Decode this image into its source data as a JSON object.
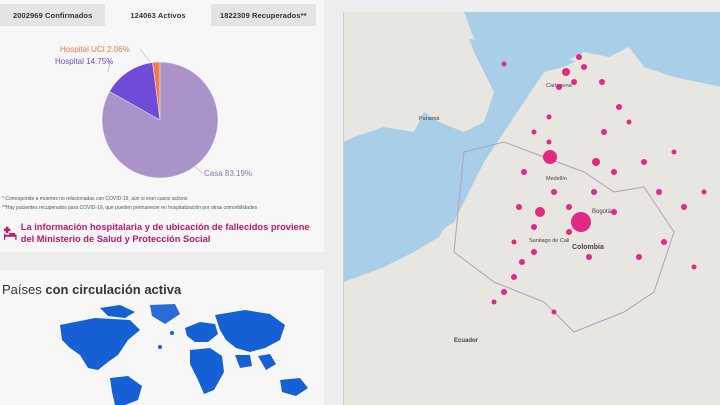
{
  "tabs": [
    {
      "label": "2002969 Confirmados"
    },
    {
      "label": "124063 Activos"
    },
    {
      "label": "1822309 Recuperados**"
    }
  ],
  "chart_data": {
    "type": "pie",
    "labels": [
      "Casa",
      "Hospital",
      "Hospital UCI"
    ],
    "values": [
      83.19,
      14.75,
      2.06
    ],
    "label_texts": [
      "Casa 83.19%",
      "Hospital 14.75%",
      "Hospital UCI 2.06%"
    ],
    "colors": [
      "#a993c8",
      "#6f4bd8",
      "#ef7a4a"
    ]
  },
  "footnotes": [
    "* Corresponde a muertes no relacionadas con COVID-19, aún si eran casos activos",
    "**Hay pacientes recuperados para COVID-19, que pueden permanecer en hospitalización por otras comorbilidades"
  ],
  "info_text": "La información hospitalaria y de ubicación de fallecidos proviene del Ministerio de Salud y Protección Social",
  "paises": {
    "title_light": "Países ",
    "title_bold": "con circulación activa"
  },
  "map_labels": {
    "colombia": "Colombia",
    "bogota": "Bogotá",
    "ecuador": "Ecuador",
    "medellin": "Medellín",
    "cartagena": "Cartagena",
    "cali": "Santiago de Cali",
    "panama": "Panamá"
  },
  "colors": {
    "accent": "#c3156e",
    "dot": "#e0157a"
  }
}
